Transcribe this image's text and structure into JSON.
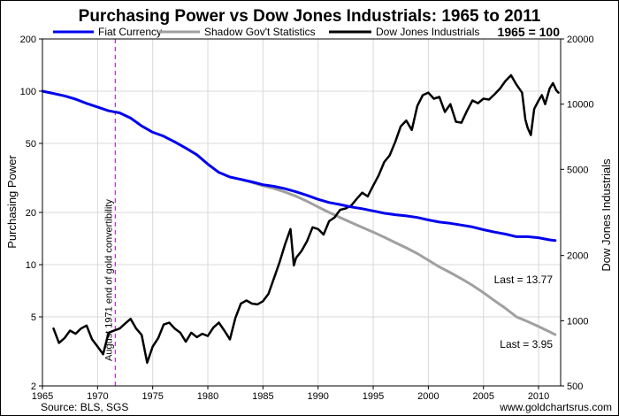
{
  "chart_data": {
    "type": "line",
    "title": "Purchasing Power vs Dow Jones Industrials: 1965 to 2011",
    "base_note": "1965 = 100",
    "ylabel": "Purchasing Power",
    "y2label": "Dow Jones Industrials",
    "x_range": [
      1965,
      2012
    ],
    "x_ticks": [
      1965,
      1970,
      1975,
      1980,
      1985,
      1990,
      1995,
      2000,
      2005,
      2010
    ],
    "ylim": [
      2,
      200
    ],
    "y_scale": "log",
    "y_ticks": [
      2,
      5,
      10,
      20,
      50,
      100,
      200
    ],
    "y2lim": [
      500,
      20000
    ],
    "y2_scale": "log",
    "y2_ticks": [
      500,
      1000,
      2000,
      5000,
      10000,
      20000
    ],
    "grid": true,
    "legend_position": "top",
    "series": [
      {
        "name": "Fiat Currency",
        "axis": "left",
        "color": "#0000ee",
        "points": [
          [
            1965,
            100
          ],
          [
            1966,
            97
          ],
          [
            1967,
            94
          ],
          [
            1968,
            90
          ],
          [
            1969,
            85
          ],
          [
            1970,
            81
          ],
          [
            1971,
            77
          ],
          [
            1972,
            75
          ],
          [
            1973,
            70
          ],
          [
            1974,
            63
          ],
          [
            1975,
            58
          ],
          [
            1976,
            55
          ],
          [
            1977,
            51
          ],
          [
            1978,
            47
          ],
          [
            1979,
            43
          ],
          [
            1980,
            38
          ],
          [
            1981,
            34
          ],
          [
            1982,
            32
          ],
          [
            1983,
            31
          ],
          [
            1984,
            30
          ],
          [
            1985,
            28.9
          ],
          [
            1986,
            28.3
          ],
          [
            1987,
            27.4
          ],
          [
            1988,
            26.3
          ],
          [
            1989,
            25.1
          ],
          [
            1990,
            23.8
          ],
          [
            1991,
            22.8
          ],
          [
            1992,
            22.2
          ],
          [
            1993,
            21.5
          ],
          [
            1994,
            21
          ],
          [
            1995,
            20.4
          ],
          [
            1996,
            19.8
          ],
          [
            1997,
            19.4
          ],
          [
            1998,
            19.1
          ],
          [
            1999,
            18.7
          ],
          [
            2000,
            18.1
          ],
          [
            2001,
            17.6
          ],
          [
            2002,
            17.3
          ],
          [
            2003,
            16.9
          ],
          [
            2004,
            16.5
          ],
          [
            2005,
            15.9
          ],
          [
            2006,
            15.4
          ],
          [
            2007,
            15
          ],
          [
            2008,
            14.5
          ],
          [
            2009,
            14.5
          ],
          [
            2010,
            14.3
          ],
          [
            2011,
            13.9
          ],
          [
            2011.5,
            13.77
          ]
        ]
      },
      {
        "name": "Shadow Gov't Statistics",
        "axis": "left",
        "color": "#a0a0a0",
        "points": [
          [
            1983,
            31
          ],
          [
            1984,
            29.8
          ],
          [
            1985,
            28.5
          ],
          [
            1986,
            27.5
          ],
          [
            1987,
            26.2
          ],
          [
            1988,
            24.8
          ],
          [
            1989,
            23.2
          ],
          [
            1990,
            21.5
          ],
          [
            1991,
            20
          ],
          [
            1992,
            18.7
          ],
          [
            1993,
            17.5
          ],
          [
            1994,
            16.4
          ],
          [
            1995,
            15.4
          ],
          [
            1996,
            14.4
          ],
          [
            1997,
            13.4
          ],
          [
            1998,
            12.5
          ],
          [
            1999,
            11.6
          ],
          [
            2000,
            10.6
          ],
          [
            2001,
            9.7
          ],
          [
            2002,
            9
          ],
          [
            2003,
            8.3
          ],
          [
            2004,
            7.6
          ],
          [
            2005,
            6.9
          ],
          [
            2006,
            6.2
          ],
          [
            2007,
            5.6
          ],
          [
            2008,
            5
          ],
          [
            2009,
            4.7
          ],
          [
            2010,
            4.4
          ],
          [
            2011,
            4.1
          ],
          [
            2011.5,
            3.95
          ]
        ]
      },
      {
        "name": "Dow Jones Industrials",
        "axis": "right",
        "color": "#000000",
        "points": [
          [
            1966,
            920
          ],
          [
            1966.5,
            790
          ],
          [
            1967,
            830
          ],
          [
            1967.5,
            900
          ],
          [
            1968,
            870
          ],
          [
            1968.5,
            920
          ],
          [
            1969,
            950
          ],
          [
            1969.5,
            820
          ],
          [
            1970,
            760
          ],
          [
            1970.5,
            700
          ],
          [
            1971,
            880
          ],
          [
            1971.5,
            900
          ],
          [
            1972,
            920
          ],
          [
            1972.5,
            970
          ],
          [
            1973,
            1020
          ],
          [
            1973.5,
            920
          ],
          [
            1974,
            860
          ],
          [
            1974.5,
            640
          ],
          [
            1975,
            760
          ],
          [
            1975.5,
            830
          ],
          [
            1976,
            960
          ],
          [
            1976.5,
            980
          ],
          [
            1977,
            920
          ],
          [
            1977.5,
            880
          ],
          [
            1978,
            800
          ],
          [
            1978.5,
            880
          ],
          [
            1979,
            840
          ],
          [
            1979.5,
            870
          ],
          [
            1980,
            850
          ],
          [
            1980.5,
            930
          ],
          [
            1981,
            980
          ],
          [
            1981.5,
            900
          ],
          [
            1982,
            820
          ],
          [
            1982.5,
            1030
          ],
          [
            1983,
            1200
          ],
          [
            1983.5,
            1240
          ],
          [
            1984,
            1200
          ],
          [
            1984.5,
            1190
          ],
          [
            1985,
            1230
          ],
          [
            1985.5,
            1330
          ],
          [
            1986,
            1570
          ],
          [
            1986.5,
            1860
          ],
          [
            1987,
            2250
          ],
          [
            1987.5,
            2650
          ],
          [
            1987.8,
            1800
          ],
          [
            1988,
            1950
          ],
          [
            1988.5,
            2100
          ],
          [
            1989,
            2330
          ],
          [
            1989.5,
            2700
          ],
          [
            1990,
            2650
          ],
          [
            1990.5,
            2500
          ],
          [
            1991,
            2880
          ],
          [
            1991.5,
            3000
          ],
          [
            1992,
            3250
          ],
          [
            1992.5,
            3300
          ],
          [
            1993,
            3400
          ],
          [
            1993.5,
            3650
          ],
          [
            1994,
            3900
          ],
          [
            1994.5,
            3750
          ],
          [
            1995,
            4200
          ],
          [
            1995.5,
            4700
          ],
          [
            1996,
            5400
          ],
          [
            1996.5,
            5800
          ],
          [
            1997,
            6700
          ],
          [
            1997.5,
            7900
          ],
          [
            1998,
            8400
          ],
          [
            1998.5,
            7600
          ],
          [
            1999,
            9800
          ],
          [
            1999.5,
            11000
          ],
          [
            2000,
            11300
          ],
          [
            2000.5,
            10600
          ],
          [
            2001,
            10800
          ],
          [
            2001.5,
            9200
          ],
          [
            2002,
            10000
          ],
          [
            2002.5,
            8300
          ],
          [
            2003,
            8200
          ],
          [
            2003.5,
            9300
          ],
          [
            2004,
            10400
          ],
          [
            2004.5,
            10100
          ],
          [
            2005,
            10600
          ],
          [
            2005.5,
            10500
          ],
          [
            2006,
            11100
          ],
          [
            2006.5,
            11800
          ],
          [
            2007,
            12800
          ],
          [
            2007.5,
            13600
          ],
          [
            2008,
            12300
          ],
          [
            2008.5,
            11300
          ],
          [
            2008.8,
            8500
          ],
          [
            2009,
            7800
          ],
          [
            2009.3,
            7200
          ],
          [
            2009.6,
            9500
          ],
          [
            2010,
            10400
          ],
          [
            2010.3,
            11000
          ],
          [
            2010.6,
            10000
          ],
          [
            2011,
            11800
          ],
          [
            2011.3,
            12500
          ],
          [
            2011.6,
            11600
          ],
          [
            2011.8,
            11300
          ]
        ]
      }
    ],
    "annotations": [
      {
        "text": "August 1971 end of gold convertibility",
        "x": 1971.6,
        "color": "#0000ee"
      },
      {
        "text": "Last = 13.77",
        "series": "Fiat Currency"
      },
      {
        "text": "Last = 3.95",
        "series": "Shadow Gov't Statistics"
      }
    ]
  },
  "footer": {
    "source": "Source: BLS, SGS",
    "site": "www.goldchartsrus.com"
  }
}
